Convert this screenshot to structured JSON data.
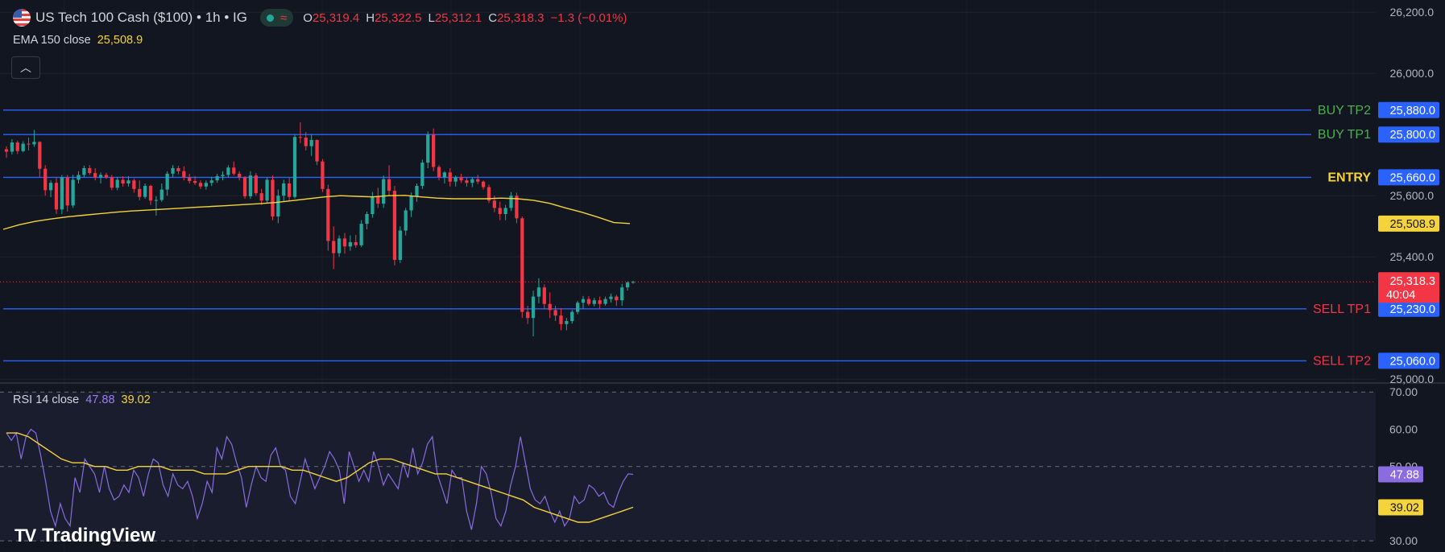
{
  "header": {
    "symbol_title": "US Tech 100 Cash ($100) • 1h • IG",
    "ohlc": {
      "o_label": "O",
      "o_value": "25,319.4",
      "h_label": "H",
      "h_value": "25,322.5",
      "l_label": "L",
      "l_value": "25,312.1",
      "c_label": "C",
      "c_value": "25,318.3",
      "change": "−1.3 (−0.01%)"
    }
  },
  "ema_legend": {
    "label": "EMA 150 close",
    "value": "25,508.9"
  },
  "rsi_legend": {
    "label": "RSI 14 close",
    "value1": "47.88",
    "value2": "39.02"
  },
  "branding": {
    "name": "TradingView"
  },
  "colors": {
    "background": "#121620",
    "up": "#26a69a",
    "down": "#f23645",
    "ema": "#f5d33a",
    "level_line": "#2962ff",
    "rsi": "#8a6be0",
    "rsi_ma": "#f5d33a",
    "buy_text": "#4caf50",
    "sell_text": "#f23645",
    "entry_text": "#f5d33a"
  },
  "chart_data": [
    {
      "type": "candlestick",
      "title": "US Tech 100 Cash ($100) • 1h • IG",
      "ylim": [
        24990,
        26240
      ],
      "yticks": [
        "26,200.0",
        "26,000.0",
        "25,600.0",
        "25,400.0",
        "25,000.0"
      ],
      "ytick_values": [
        26200,
        26000,
        25600,
        25400,
        25000
      ],
      "candles": [
        [
          25752,
          25762,
          25724,
          25744
        ],
        [
          25744,
          25785,
          25735,
          25774
        ],
        [
          25774,
          25780,
          25736,
          25746
        ],
        [
          25746,
          25778,
          25742,
          25770
        ],
        [
          25770,
          25790,
          25748,
          25768
        ],
        [
          25768,
          25815,
          25760,
          25776
        ],
        [
          25776,
          25778,
          25660,
          25688
        ],
        [
          25688,
          25700,
          25600,
          25618
        ],
        [
          25618,
          25650,
          25595,
          25642
        ],
        [
          25642,
          25660,
          25540,
          25555
        ],
        [
          25555,
          25668,
          25540,
          25660
        ],
        [
          25660,
          25668,
          25548,
          25568
        ],
        [
          25568,
          25668,
          25560,
          25652
        ],
        [
          25652,
          25680,
          25640,
          25668
        ],
        [
          25668,
          25698,
          25660,
          25690
        ],
        [
          25690,
          25700,
          25668,
          25674
        ],
        [
          25674,
          25690,
          25650,
          25660
        ],
        [
          25660,
          25676,
          25640,
          25668
        ],
        [
          25668,
          25675,
          25655,
          25660
        ],
        [
          25660,
          25668,
          25618,
          25626
        ],
        [
          25626,
          25662,
          25618,
          25652
        ],
        [
          25652,
          25664,
          25630,
          25640
        ],
        [
          25640,
          25664,
          25630,
          25650
        ],
        [
          25650,
          25656,
          25610,
          25622
        ],
        [
          25622,
          25650,
          25585,
          25596
        ],
        [
          25596,
          25640,
          25590,
          25632
        ],
        [
          25632,
          25636,
          25570,
          25584
        ],
        [
          25584,
          25598,
          25535,
          25586
        ],
        [
          25586,
          25640,
          25580,
          25620
        ],
        [
          25620,
          25680,
          25600,
          25672
        ],
        [
          25672,
          25700,
          25660,
          25690
        ],
        [
          25690,
          25698,
          25670,
          25680
        ],
        [
          25680,
          25696,
          25650,
          25660
        ],
        [
          25660,
          25672,
          25640,
          25648
        ],
        [
          25648,
          25664,
          25635,
          25642
        ],
        [
          25642,
          25650,
          25622,
          25630
        ],
        [
          25630,
          25650,
          25620,
          25642
        ],
        [
          25642,
          25662,
          25632,
          25650
        ],
        [
          25650,
          25672,
          25642,
          25664
        ],
        [
          25664,
          25680,
          25650,
          25668
        ],
        [
          25668,
          25700,
          25660,
          25692
        ],
        [
          25692,
          25712,
          25666,
          25672
        ],
        [
          25672,
          25680,
          25650,
          25660
        ],
        [
          25660,
          25664,
          25590,
          25598
        ],
        [
          25598,
          25680,
          25590,
          25666
        ],
        [
          25666,
          25674,
          25600,
          25608
        ],
        [
          25608,
          25622,
          25570,
          25584
        ],
        [
          25584,
          25660,
          25576,
          25652
        ],
        [
          25652,
          25666,
          25520,
          25532
        ],
        [
          25532,
          25620,
          25510,
          25600
        ],
        [
          25600,
          25652,
          25582,
          25640
        ],
        [
          25640,
          25658,
          25582,
          25596
        ],
        [
          25596,
          25800,
          25590,
          25792
        ],
        [
          25792,
          25840,
          25772,
          25790
        ],
        [
          25790,
          25808,
          25748,
          25762
        ],
        [
          25762,
          25800,
          25730,
          25782
        ],
        [
          25782,
          25784,
          25700,
          25712
        ],
        [
          25712,
          25720,
          25612,
          25622
        ],
        [
          25622,
          25636,
          25420,
          25452
        ],
        [
          25452,
          25500,
          25360,
          25412
        ],
        [
          25412,
          25470,
          25400,
          25460
        ],
        [
          25460,
          25478,
          25410,
          25434
        ],
        [
          25434,
          25470,
          25420,
          25448
        ],
        [
          25448,
          25472,
          25430,
          25438
        ],
        [
          25438,
          25520,
          25432,
          25508
        ],
        [
          25508,
          25548,
          25490,
          25540
        ],
        [
          25540,
          25612,
          25528,
          25598
        ],
        [
          25598,
          25626,
          25560,
          25574
        ],
        [
          25574,
          25666,
          25560,
          25654
        ],
        [
          25654,
          25700,
          25600,
          25616
        ],
        [
          25616,
          25632,
          25372,
          25390
        ],
        [
          25390,
          25500,
          25380,
          25486
        ],
        [
          25486,
          25560,
          25470,
          25552
        ],
        [
          25552,
          25610,
          25530,
          25598
        ],
        [
          25598,
          25640,
          25580,
          25632
        ],
        [
          25632,
          25718,
          25622,
          25708
        ],
        [
          25708,
          25810,
          25690,
          25800
        ],
        [
          25800,
          25820,
          25680,
          25694
        ],
        [
          25694,
          25700,
          25650,
          25660
        ],
        [
          25660,
          25680,
          25640,
          25676
        ],
        [
          25676,
          25690,
          25630,
          25646
        ],
        [
          25646,
          25666,
          25630,
          25660
        ],
        [
          25660,
          25672,
          25642,
          25650
        ],
        [
          25650,
          25660,
          25630,
          25642
        ],
        [
          25642,
          25660,
          25628,
          25654
        ],
        [
          25654,
          25668,
          25638,
          25646
        ],
        [
          25646,
          25650,
          25620,
          25628
        ],
        [
          25628,
          25636,
          25576,
          25584
        ],
        [
          25584,
          25600,
          25546,
          25560
        ],
        [
          25560,
          25580,
          25520,
          25540
        ],
        [
          25540,
          25570,
          25520,
          25560
        ],
        [
          25560,
          25612,
          25550,
          25600
        ],
        [
          25600,
          25610,
          25510,
          25526
        ],
        [
          25526,
          25532,
          25200,
          25220
        ],
        [
          25220,
          25240,
          25180,
          25200
        ],
        [
          25200,
          25290,
          25140,
          25270
        ],
        [
          25270,
          25330,
          25248,
          25300
        ],
        [
          25300,
          25310,
          25230,
          25246
        ],
        [
          25246,
          25284,
          25200,
          25226
        ],
        [
          25226,
          25240,
          25190,
          25208
        ],
        [
          25208,
          25232,
          25160,
          25180
        ],
        [
          25180,
          25200,
          25160,
          25190
        ],
        [
          25190,
          25226,
          25182,
          25220
        ],
        [
          25220,
          25256,
          25212,
          25250
        ],
        [
          25250,
          25272,
          25230,
          25262
        ],
        [
          25262,
          25272,
          25240,
          25246
        ],
        [
          25246,
          25266,
          25238,
          25258
        ],
        [
          25258,
          25270,
          25232,
          25246
        ],
        [
          25246,
          25270,
          25240,
          25262
        ],
        [
          25262,
          25280,
          25250,
          25270
        ],
        [
          25270,
          25276,
          25240,
          25258
        ],
        [
          25258,
          25312,
          25240,
          25300
        ],
        [
          25300,
          25320,
          25290,
          25316
        ],
        [
          25316,
          25322,
          25312,
          25318
        ]
      ],
      "ema_150": [
        25490,
        25505,
        25516,
        25524,
        25531,
        25536,
        25541,
        25546,
        25550,
        25553,
        25556,
        25559,
        25562,
        25565,
        25568,
        25571,
        25574,
        25578,
        25584,
        25590,
        25596,
        25600,
        25598,
        25596,
        25600,
        25601,
        25596,
        25592,
        25590,
        25590,
        25590,
        25592,
        25590,
        25585,
        25575,
        25560,
        25546,
        25530,
        25512,
        25508.9
      ],
      "ema_label": "EMA 150 close",
      "ema_value": "25,508.9",
      "last_price": "25,318.3",
      "last_price_value": 25318.3,
      "countdown": "40:04",
      "levels": [
        {
          "label": "BUY TP2",
          "price": 25880,
          "price_label": "25,880.0"
        },
        {
          "label": "BUY TP1",
          "price": 25800,
          "price_label": "25,800.0"
        },
        {
          "label": "ENTRY",
          "price": 25660,
          "price_label": "25,660.0"
        },
        {
          "label": "SELL TP1",
          "price": 25230,
          "price_label": "25,230.0"
        },
        {
          "label": "SELL TP2",
          "price": 25060,
          "price_label": "25,060.0"
        }
      ]
    },
    {
      "type": "line",
      "title": "RSI 14 close",
      "ylim": [
        27,
        72
      ],
      "yticks": [
        "70.00",
        "60.00",
        "50.00",
        "30.00"
      ],
      "ytick_values": [
        70,
        60,
        50,
        30
      ],
      "bands": [
        70,
        50,
        30
      ],
      "series": [
        {
          "name": "RSI 14 close",
          "values": [
            59,
            57,
            59,
            52,
            58,
            60,
            59,
            53,
            46,
            38,
            34,
            40,
            36,
            34,
            47,
            43,
            52,
            50,
            48,
            43,
            50,
            44,
            41,
            42,
            45,
            43,
            49,
            47,
            42,
            48,
            52,
            51,
            45,
            42,
            48,
            45,
            44,
            46,
            42,
            36,
            40,
            46,
            43,
            55,
            52,
            58,
            56,
            51,
            47,
            39,
            45,
            50,
            47,
            46,
            53,
            55,
            50,
            49,
            42,
            40,
            46,
            52,
            48,
            44,
            47,
            50,
            54,
            52,
            49,
            40,
            54,
            50,
            46,
            49,
            46,
            54,
            50,
            45,
            48,
            46,
            44,
            51,
            47,
            55,
            48,
            51,
            56,
            58,
            48,
            44,
            40,
            49,
            47,
            47,
            38,
            33,
            40,
            50,
            48,
            43,
            36,
            34,
            38,
            45,
            50,
            58,
            51,
            44,
            41,
            40,
            42,
            38,
            35,
            38,
            34,
            36,
            42,
            40,
            41,
            45,
            44,
            42,
            43,
            40,
            39,
            43,
            46,
            48,
            47.88
          ]
        },
        {
          "name": "RSI MA",
          "values": [
            59,
            59,
            58,
            56,
            54,
            52,
            51,
            51,
            50,
            50,
            49,
            49,
            50,
            50,
            50,
            49,
            49,
            49,
            48,
            48,
            48,
            49,
            50,
            50,
            50,
            50,
            49,
            49,
            48,
            47,
            46,
            47,
            49,
            51,
            52,
            52,
            51,
            50,
            49,
            48,
            48,
            47,
            46,
            45,
            44,
            43,
            42,
            41,
            39,
            38,
            37,
            36,
            35,
            35,
            36,
            37,
            38,
            39.02
          ]
        }
      ],
      "last_values": [
        "47.88",
        "39.02"
      ]
    }
  ]
}
